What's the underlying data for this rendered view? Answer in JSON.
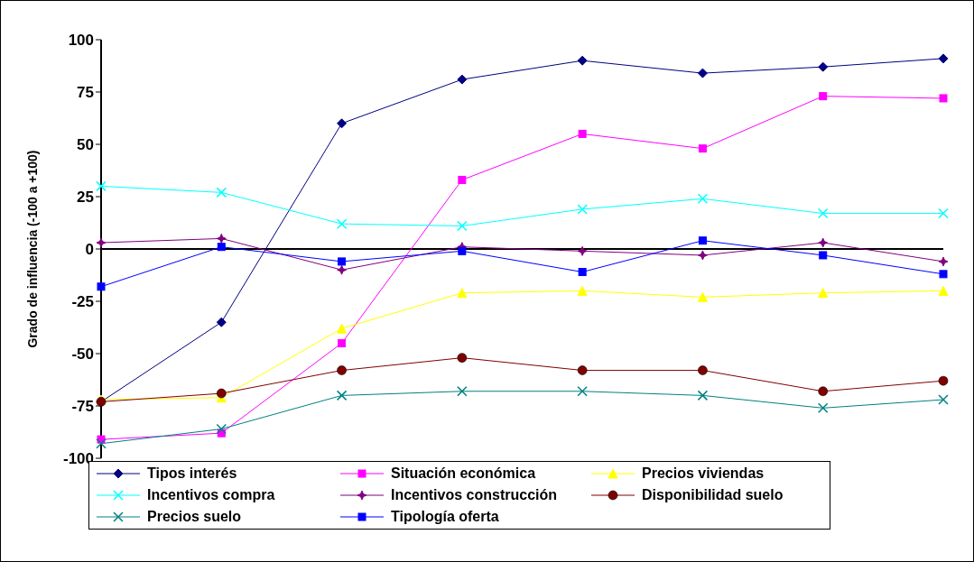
{
  "chart_data": {
    "type": "line",
    "ylabel": "Grado de influencia (-100 a +100)",
    "categories": [
      null,
      null,
      null,
      null,
      null,
      null,
      null,
      null
    ],
    "ylim": [
      -100,
      100
    ],
    "yticks": [
      -100,
      -75,
      -50,
      -25,
      0,
      25,
      50,
      75,
      100
    ],
    "legend": "bottom",
    "tick_labels": "y",
    "series": [
      {
        "name": "Tipos interés",
        "color": "#000080",
        "marker": "diamond",
        "values": [
          -73,
          -35,
          60,
          81,
          90,
          84,
          87,
          91
        ]
      },
      {
        "name": "Situación económica",
        "color": "#ff00ff",
        "marker": "square",
        "values": [
          -91,
          -88,
          -45,
          33,
          55,
          48,
          73,
          72
        ]
      },
      {
        "name": "Precios viviendas",
        "color": "#ffff00",
        "marker": "triangle",
        "values": [
          -72,
          -71,
          -38,
          -21,
          -20,
          -23,
          -21,
          -20
        ]
      },
      {
        "name": "Incentivos compra",
        "color": "#00ffff",
        "marker": "cross",
        "values": [
          30,
          27,
          12,
          11,
          19,
          24,
          17,
          17
        ]
      },
      {
        "name": "Incentivos construcción",
        "color": "#800080",
        "marker": "star",
        "values": [
          3,
          5,
          -10,
          1,
          -1,
          -3,
          3,
          -6
        ]
      },
      {
        "name": "Disponibilidad suelo",
        "color": "#800000",
        "marker": "circle",
        "values": [
          -73,
          -69,
          -58,
          -52,
          -58,
          -58,
          -68,
          -63
        ]
      },
      {
        "name": "Precios suelo",
        "color": "#008080",
        "marker": "cross",
        "values": [
          -93,
          -86,
          -70,
          -68,
          -68,
          -70,
          -76,
          -72
        ]
      },
      {
        "name": "Tipología oferta",
        "color": "#0000ff",
        "marker": "square",
        "values": [
          -18,
          1,
          -6,
          -1,
          -11,
          4,
          -3,
          -12
        ]
      }
    ]
  }
}
